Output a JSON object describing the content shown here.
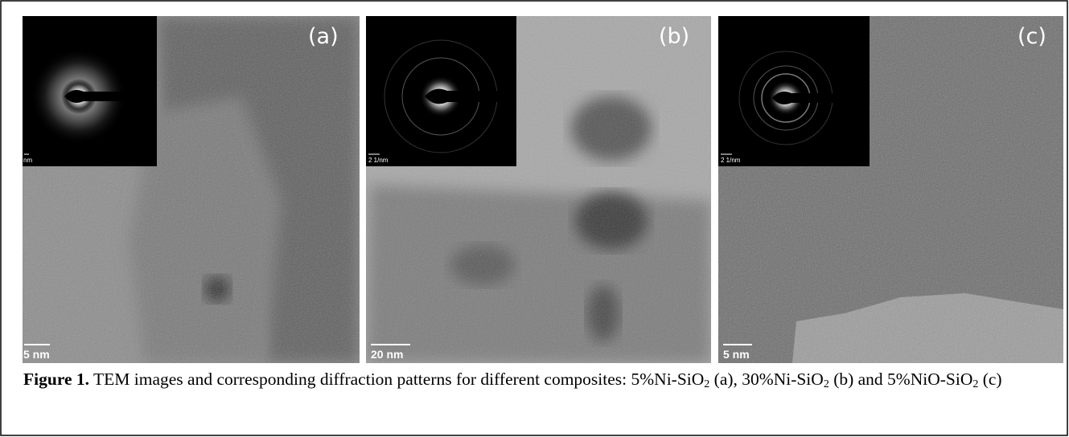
{
  "panels": [
    {
      "label": "(a)",
      "scale_bar": "5 nm",
      "inset_scale": "nm"
    },
    {
      "label": "(b)",
      "scale_bar": "20 nm",
      "inset_scale": "2 1/nm"
    },
    {
      "label": "(c)",
      "scale_bar": "5 nm",
      "inset_scale": "2 1/nm"
    }
  ],
  "caption": {
    "label": "Figure 1.",
    "segments": [
      " TEM images and corresponding diffraction patterns for different composites: 5%Ni-SiO",
      "2",
      " (a), 30%Ni-SiO",
      "2",
      " (b) and 5%NiO-SiO",
      "2",
      " (c)"
    ]
  }
}
